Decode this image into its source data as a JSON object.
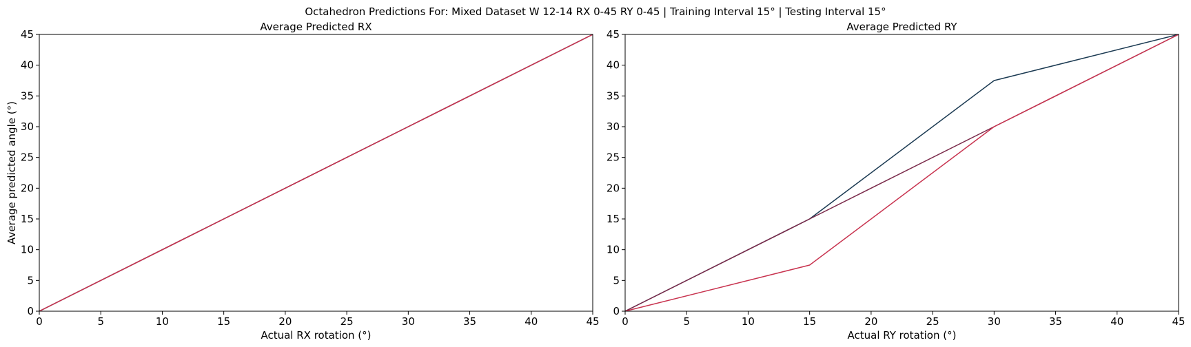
{
  "suptitle": "Octahedron Predictions For: Mixed Dataset W 12-14 RX 0-45 RY 0-45 | Training Interval 15° | Testing Interval 15°",
  "colors": {
    "series_dark": "#1b3a52",
    "series_red": "#c8334f",
    "ideal": "#7a2a4a",
    "axis": "#000000"
  },
  "chart_data": [
    {
      "type": "line",
      "title": "Average Predicted RX",
      "xlabel": "Actual RX rotation (°)",
      "ylabel": "Average predicted angle (°)",
      "xlim": [
        0,
        45
      ],
      "ylim": [
        0,
        45
      ],
      "xticks": [
        "0",
        "5",
        "10",
        "15",
        "20",
        "25",
        "30",
        "35",
        "40",
        "45"
      ],
      "yticks": [
        "0",
        "5",
        "10",
        "15",
        "20",
        "25",
        "30",
        "35",
        "40",
        "45"
      ],
      "grid": false,
      "series": [
        {
          "color": "#1b3a52",
          "x": [
            0,
            15,
            30,
            45
          ],
          "y": [
            0,
            15,
            30,
            45
          ]
        },
        {
          "color": "#7a2a4a",
          "x": [
            0,
            15,
            30,
            45
          ],
          "y": [
            0,
            15,
            30,
            45
          ]
        },
        {
          "color": "#c8334f",
          "x": [
            0,
            15,
            30,
            45
          ],
          "y": [
            0,
            15,
            30,
            45
          ]
        }
      ]
    },
    {
      "type": "line",
      "title": "Average Predicted RY",
      "xlabel": "Actual RY rotation (°)",
      "ylabel": "",
      "xlim": [
        0,
        45
      ],
      "ylim": [
        0,
        45
      ],
      "xticks": [
        "0",
        "5",
        "10",
        "15",
        "20",
        "25",
        "30",
        "35",
        "40",
        "45"
      ],
      "yticks": [
        "0",
        "5",
        "10",
        "15",
        "20",
        "25",
        "30",
        "35",
        "40",
        "45"
      ],
      "grid": false,
      "series": [
        {
          "color": "#1b3a52",
          "x": [
            0,
            15,
            30,
            45
          ],
          "y": [
            0,
            15,
            37.5,
            45
          ]
        },
        {
          "color": "#7a2a4a",
          "x": [
            0,
            15,
            30,
            45
          ],
          "y": [
            0,
            15,
            30,
            45
          ]
        },
        {
          "color": "#c8334f",
          "x": [
            0,
            15,
            30,
            45
          ],
          "y": [
            0,
            7.5,
            30,
            45
          ]
        }
      ]
    }
  ]
}
